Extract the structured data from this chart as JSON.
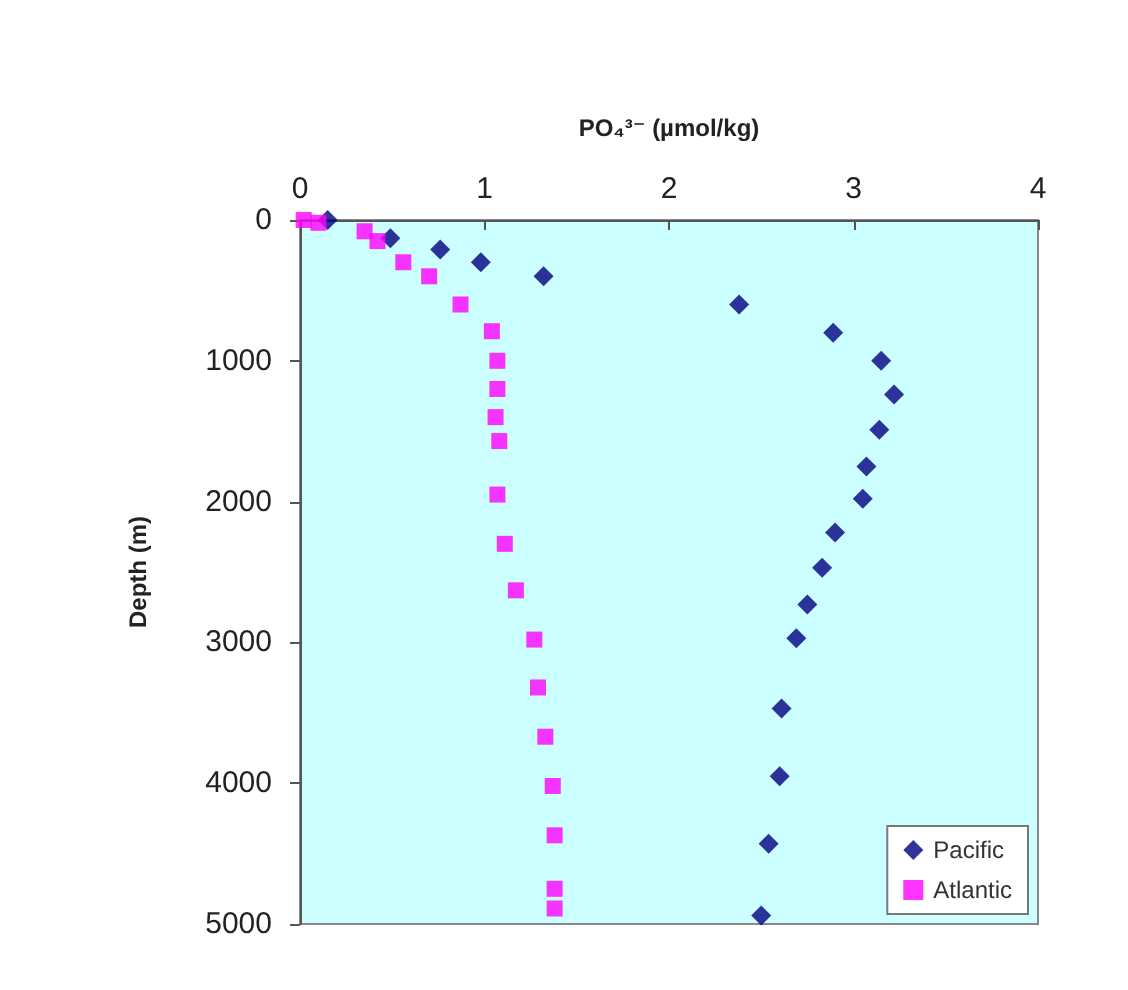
{
  "chart_data": {
    "type": "scatter",
    "xlabel": "PO₄³⁻ (µmol/kg)",
    "ylabel": "Depth (m)",
    "xlim": [
      0,
      4
    ],
    "xticks": [
      0,
      1,
      2,
      3,
      4
    ],
    "ylim": [
      5000,
      0
    ],
    "yticks": [
      0,
      1000,
      2000,
      3000,
      4000,
      5000
    ],
    "grid": false,
    "legend": "bottom right",
    "series": [
      {
        "name": "Pacific",
        "color": "#000080",
        "marker": "diamond",
        "x": [
          0.15,
          0.49,
          0.76,
          0.98,
          1.32,
          2.38,
          2.89,
          3.15,
          3.22,
          3.14,
          3.07,
          3.05,
          2.9,
          2.83,
          2.75,
          2.69,
          2.61,
          2.6,
          2.54,
          2.5
        ],
        "values": [
          0,
          130,
          210,
          300,
          400,
          600,
          800,
          1000,
          1240,
          1490,
          1750,
          1980,
          2220,
          2470,
          2730,
          2970,
          3470,
          3950,
          4430,
          4940
        ]
      },
      {
        "name": "Atlantic",
        "color": "#ff00ff",
        "marker": "square",
        "x": [
          0.02,
          0.1,
          0.35,
          0.42,
          0.56,
          0.7,
          0.87,
          1.04,
          1.07,
          1.07,
          1.06,
          1.08,
          1.07,
          1.11,
          1.17,
          1.27,
          1.29,
          1.33,
          1.37,
          1.38,
          1.38,
          1.38
        ],
        "values": [
          0,
          20,
          80,
          150,
          300,
          400,
          600,
          790,
          1000,
          1200,
          1400,
          1570,
          1950,
          2300,
          2630,
          2980,
          3320,
          3670,
          4020,
          4370,
          4750,
          4890
        ]
      }
    ]
  }
}
